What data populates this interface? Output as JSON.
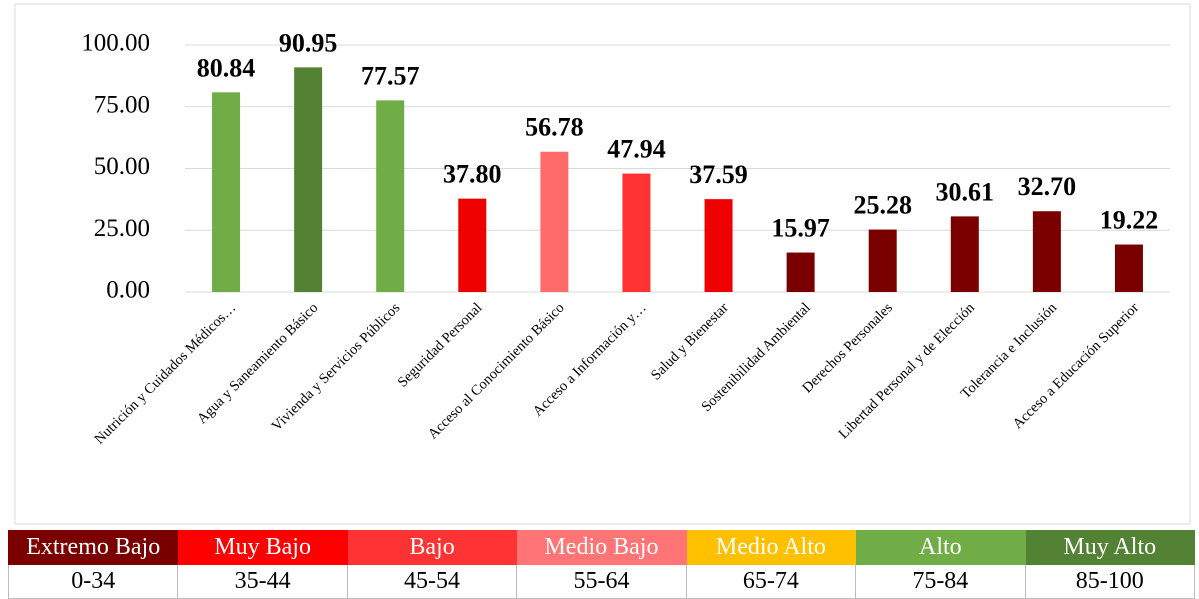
{
  "chart_data": {
    "type": "bar",
    "categories": [
      "Nutrición y Cuidados Médicos…",
      "Agua y Saneamiento Básico",
      "Vivienda y Servicios Públicos",
      "Seguridad Personal",
      "Acceso al Conocimiento Básico",
      "Acceso a Información y…",
      "Salud y Bienestar",
      "Sostenibilidad Ambiental",
      "Derechos Personales",
      "Libertad Personal y de Elección",
      "Tolerancia e Inclusión",
      "Acceso a Educación Superior"
    ],
    "values": [
      80.84,
      90.95,
      77.57,
      37.8,
      56.78,
      47.94,
      37.59,
      15.97,
      25.28,
      30.61,
      32.7,
      19.22
    ],
    "value_labels": [
      "80.84",
      "90.95",
      "77.57",
      "37.80",
      "56.78",
      "47.94",
      "37.59",
      "15.97",
      "25.28",
      "30.61",
      "32.70",
      "19.22"
    ],
    "colors": [
      "#70ad47",
      "#548235",
      "#70ad47",
      "#ee0000",
      "#ff6b6b",
      "#ff3333",
      "#ee0000",
      "#7a0000",
      "#7a0000",
      "#7a0000",
      "#7a0000",
      "#7a0000"
    ],
    "ylim": [
      0,
      100
    ],
    "yticks": [
      {
        "value": 0,
        "label": "0.00"
      },
      {
        "value": 25,
        "label": "25.00"
      },
      {
        "value": 50,
        "label": "50.00"
      },
      {
        "value": 75,
        "label": "75.00"
      },
      {
        "value": 100,
        "label": "100.00"
      }
    ],
    "grid": true
  },
  "scale_table": [
    {
      "label": "Extremo Bajo",
      "range": "0-34",
      "color": "#7a0000"
    },
    {
      "label": "Muy Bajo",
      "range": "35-44",
      "color": "#ff0000"
    },
    {
      "label": "Bajo",
      "range": "45-54",
      "color": "#ff3333"
    },
    {
      "label": "Medio Bajo",
      "range": "55-64",
      "color": "#ff7575"
    },
    {
      "label": "Medio Alto",
      "range": "65-74",
      "color": "#ffc000"
    },
    {
      "label": "Alto",
      "range": "75-84",
      "color": "#70ad47"
    },
    {
      "label": "Muy Alto",
      "range": "85-100",
      "color": "#548235"
    }
  ]
}
